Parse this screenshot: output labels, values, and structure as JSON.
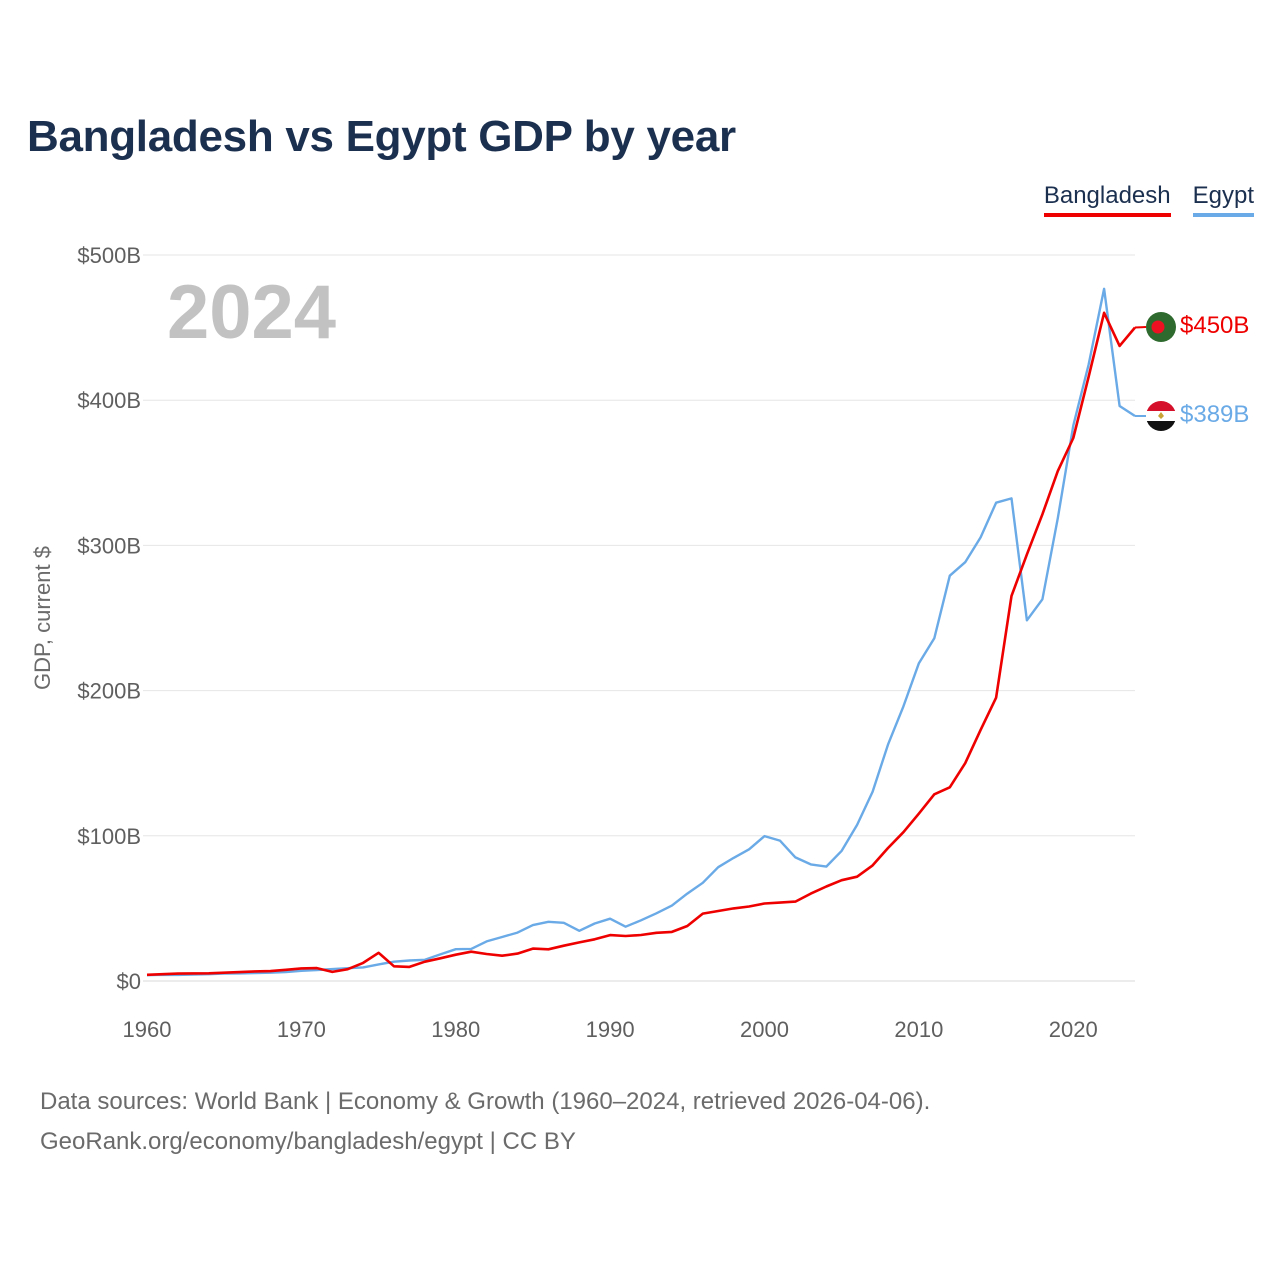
{
  "title": "Bangladesh vs Egypt GDP by year",
  "legend": {
    "bangladesh": "Bangladesh",
    "egypt": "Egypt"
  },
  "footer": {
    "line1": "Data sources: World Bank | Economy & Growth (1960–2024, retrieved 2026-04-06).",
    "line2": "GeoRank.org/economy/bangladesh/egypt | CC BY"
  },
  "colors": {
    "bangladesh": "#ee0000",
    "egypt": "#6aaae6",
    "grid": "#e6e6e6",
    "title": "#1b2f4f"
  },
  "chart_data": {
    "type": "line",
    "title": "Bangladesh vs Egypt GDP by year",
    "ylabel": "GDP, current $",
    "xlabel": "",
    "year_label": "2024",
    "xlim": [
      1960,
      2024
    ],
    "ylim": [
      0,
      500
    ],
    "y_unit": "billion USD",
    "x_ticks": [
      1960,
      1970,
      1980,
      1990,
      2000,
      2010,
      2020
    ],
    "y_ticks": [
      {
        "value": 0,
        "label": "$0"
      },
      {
        "value": 100,
        "label": "$100B"
      },
      {
        "value": 200,
        "label": "$200B"
      },
      {
        "value": 300,
        "label": "$300B"
      },
      {
        "value": 400,
        "label": "$400B"
      },
      {
        "value": 500,
        "label": "$500B"
      }
    ],
    "grid": true,
    "legend_position": "top-right",
    "x": [
      1960,
      1961,
      1962,
      1963,
      1964,
      1965,
      1966,
      1967,
      1968,
      1969,
      1970,
      1971,
      1972,
      1973,
      1974,
      1975,
      1976,
      1977,
      1978,
      1979,
      1980,
      1981,
      1982,
      1983,
      1984,
      1985,
      1986,
      1987,
      1988,
      1989,
      1990,
      1991,
      1992,
      1993,
      1994,
      1995,
      1996,
      1997,
      1998,
      1999,
      2000,
      2001,
      2002,
      2003,
      2004,
      2005,
      2006,
      2007,
      2008,
      2009,
      2010,
      2011,
      2012,
      2013,
      2014,
      2015,
      2016,
      2017,
      2018,
      2019,
      2020,
      2021,
      2022,
      2023,
      2024
    ],
    "series": [
      {
        "name": "Bangladesh",
        "key": "bangladesh",
        "end_label": "$450B",
        "values": [
          4.3,
          4.7,
          5.1,
          5.2,
          5.3,
          5.7,
          6.1,
          6.6,
          6.8,
          7.7,
          8.7,
          8.9,
          6.3,
          8.1,
          12.5,
          19.4,
          10.1,
          9.7,
          13.3,
          15.6,
          18.1,
          20.2,
          18.6,
          17.4,
          18.9,
          22.3,
          21.8,
          24.3,
          26.6,
          28.7,
          31.6,
          31.0,
          31.7,
          33.2,
          33.8,
          37.9,
          46.4,
          48.2,
          50.0,
          51.3,
          53.4,
          54.0,
          54.7,
          60.2,
          65.1,
          69.4,
          71.8,
          79.6,
          91.6,
          102.5,
          115.3,
          128.6,
          133.4,
          150.0,
          172.9,
          195.1,
          265.2,
          293.8,
          321.4,
          351.2,
          374.0,
          416.3,
          460.2,
          437.4,
          450.1
        ]
      },
      {
        "name": "Egypt",
        "key": "egypt",
        "end_label": "$389B",
        "values": [
          4.0,
          4.3,
          4.2,
          4.4,
          4.7,
          5.1,
          5.2,
          5.5,
          5.7,
          6.1,
          7.0,
          7.6,
          8.2,
          8.8,
          9.4,
          11.4,
          13.3,
          14.1,
          14.6,
          18.3,
          21.9,
          22.1,
          27.3,
          30.3,
          33.3,
          38.5,
          40.8,
          40.1,
          34.6,
          39.6,
          42.9,
          37.4,
          41.8,
          46.6,
          51.9,
          60.2,
          67.6,
          78.4,
          84.8,
          90.7,
          99.8,
          96.7,
          85.1,
          80.3,
          78.8,
          89.7,
          107.5,
          130.4,
          162.8,
          189.1,
          218.9,
          236.0,
          279.1,
          288.4,
          305.5,
          329.4,
          332.4,
          248.4,
          262.9,
          318.7,
          382.5,
          424.7,
          476.7,
          396.0,
          389.1
        ]
      }
    ]
  }
}
